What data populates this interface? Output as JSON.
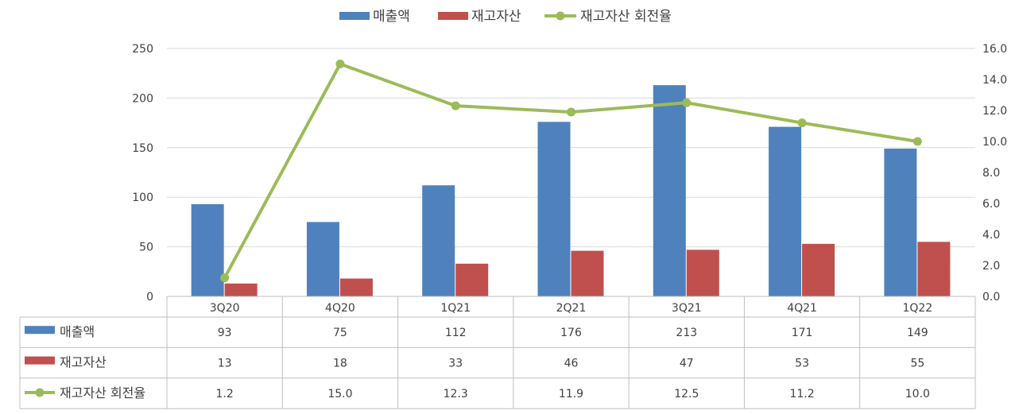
{
  "chart_data": {
    "type": "bar",
    "categories": [
      "3Q20",
      "4Q20",
      "1Q21",
      "2Q21",
      "3Q21",
      "4Q21",
      "1Q22"
    ],
    "series": [
      {
        "name": "매출액",
        "type": "bar",
        "axis": "left",
        "color": "#4F81BD",
        "values": [
          93,
          75,
          112,
          176,
          213,
          171,
          149
        ],
        "table_values": [
          "93",
          "75",
          "112",
          "176",
          "213",
          "171",
          "149"
        ]
      },
      {
        "name": "재고자산",
        "type": "bar",
        "axis": "left",
        "color": "#C0504D",
        "values": [
          13,
          18,
          33,
          46,
          47,
          53,
          55
        ],
        "table_values": [
          "13",
          "18",
          "33",
          "46",
          "47",
          "53",
          "55"
        ]
      },
      {
        "name": "재고자산 회전율",
        "type": "line",
        "axis": "right",
        "color": "#9BBB59",
        "values": [
          1.2,
          15.0,
          12.3,
          11.9,
          12.5,
          11.2,
          10.0
        ],
        "table_values": [
          "1.2",
          "15.0",
          "12.3",
          "11.9",
          "12.5",
          "11.2",
          "10.0"
        ]
      }
    ],
    "y_left": {
      "min": 0,
      "max": 250,
      "ticks": [
        "0",
        "50",
        "100",
        "150",
        "200",
        "250"
      ]
    },
    "y_right": {
      "min": 0,
      "max": 16,
      "ticks": [
        "0.0",
        "2.0",
        "4.0",
        "6.0",
        "8.0",
        "10.0",
        "12.0",
        "14.0",
        "16.0"
      ]
    },
    "grid": true,
    "legend": "top-center",
    "data_table": true
  }
}
